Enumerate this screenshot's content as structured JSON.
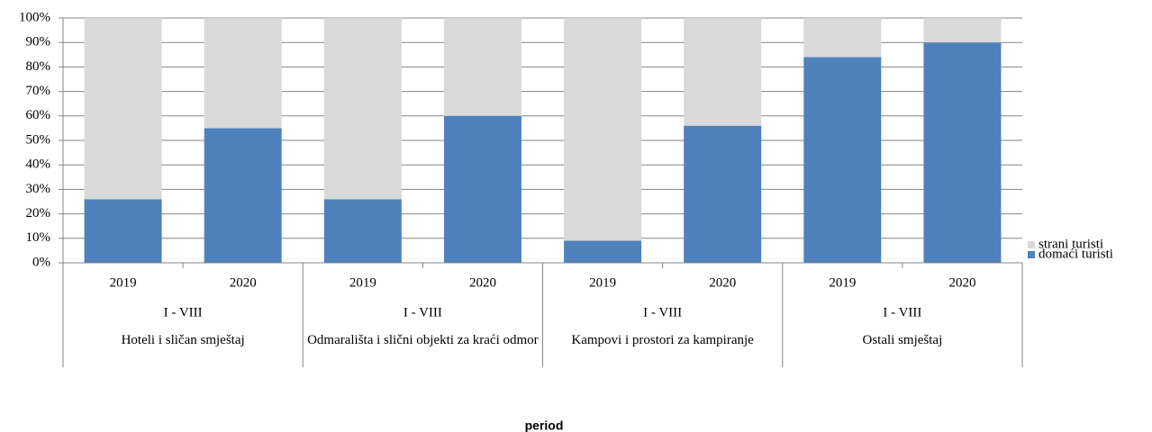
{
  "chart_data": {
    "type": "stacked_bar",
    "x_label": "period",
    "categories": [
      "2019",
      "2020",
      "2019",
      "2020",
      "2019",
      "2020",
      "2019",
      "2020"
    ],
    "groups": [
      {
        "period": "I - VIII",
        "name": "Hoteli i sličan smještaj"
      },
      {
        "period": "I - VIII",
        "name": "Odmarališta i slični objekti za kraći odmor"
      },
      {
        "period": "I - VIII",
        "name": "Kampovi i prostori za kampiranje"
      },
      {
        "period": "I - VIII",
        "name": "Ostali smještaj"
      }
    ],
    "series": [
      {
        "name": "domaći turisti",
        "color": "#4f81bd",
        "values": [
          26,
          55,
          26,
          60,
          9,
          56,
          84,
          90
        ]
      },
      {
        "name": "strani turisti",
        "color": "#d9d9d9",
        "values": [
          74,
          45,
          74,
          40,
          91,
          44,
          16,
          10
        ]
      }
    ],
    "ylim": [
      0,
      100
    ],
    "yticks": [
      {
        "value": 0,
        "label": "0%"
      },
      {
        "value": 10,
        "label": "10%"
      },
      {
        "value": 20,
        "label": "20%"
      },
      {
        "value": 30,
        "label": "30%"
      },
      {
        "value": 40,
        "label": "40%"
      },
      {
        "value": 50,
        "label": "50%"
      },
      {
        "value": 60,
        "label": "60%"
      },
      {
        "value": 70,
        "label": "70%"
      },
      {
        "value": 80,
        "label": "80%"
      },
      {
        "value": 90,
        "label": "90%"
      },
      {
        "value": 100,
        "label": "100%"
      }
    ],
    "grid": true,
    "legend": "right"
  }
}
